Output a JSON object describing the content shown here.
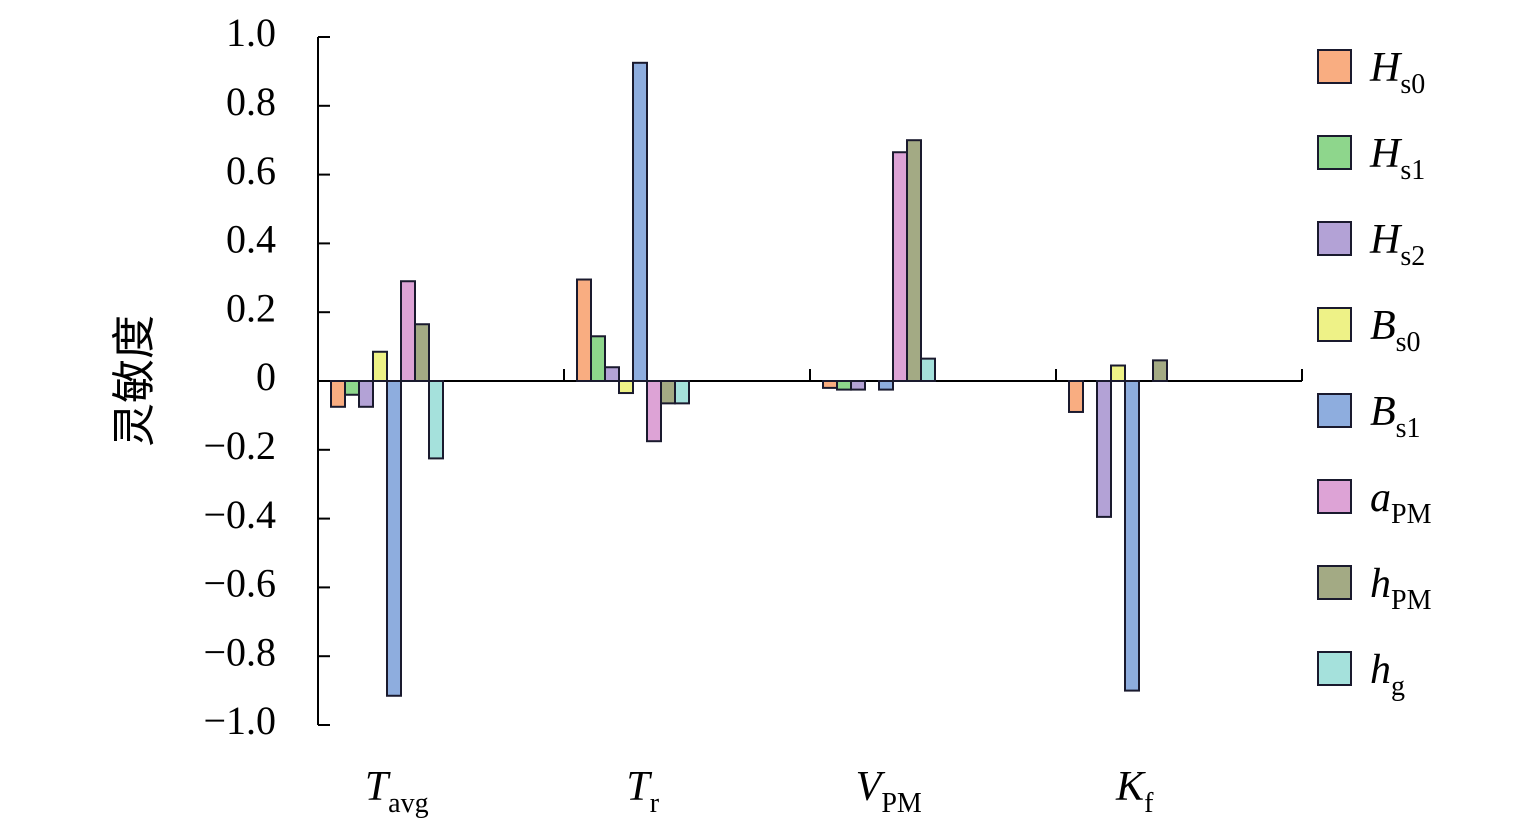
{
  "chart_data": {
    "type": "bar",
    "ylabel": "灵敏度",
    "xlabel": "",
    "ylim": [
      -1.0,
      1.0
    ],
    "yticks": [
      -1.0,
      -0.8,
      -0.6,
      -0.4,
      -0.2,
      0,
      0.2,
      0.4,
      0.6,
      0.8,
      1.0
    ],
    "ytick_labels": [
      "−1.0",
      "−0.8",
      "−0.6",
      "−0.4",
      "−0.2",
      "0",
      "0.2",
      "0.4",
      "0.6",
      "0.8",
      "1.0"
    ],
    "categories": [
      {
        "base": "T",
        "sub": "avg"
      },
      {
        "base": "T",
        "sub": "r"
      },
      {
        "base": "V",
        "sub": "PM"
      },
      {
        "base": "K",
        "sub": "f"
      }
    ],
    "legend_position": "right",
    "series": [
      {
        "name": "H",
        "sub": "s0",
        "color": "#f9ad81",
        "values": [
          -0.075,
          0.295,
          -0.02,
          -0.09
        ]
      },
      {
        "name": "H",
        "sub": "s1",
        "color": "#8ed68c",
        "values": [
          -0.04,
          0.13,
          -0.025,
          0.0
        ]
      },
      {
        "name": "H",
        "sub": "s2",
        "color": "#b3a2d6",
        "values": [
          -0.075,
          0.04,
          -0.025,
          -0.395
        ]
      },
      {
        "name": "B",
        "sub": "s0",
        "color": "#eef287",
        "values": [
          0.085,
          -0.035,
          0.0,
          0.045
        ]
      },
      {
        "name": "B",
        "sub": "s1",
        "color": "#8eadde",
        "values": [
          -0.915,
          0.925,
          -0.025,
          -0.9
        ]
      },
      {
        "name": "a",
        "sub": "PM",
        "color": "#dda3d6",
        "values": [
          0.29,
          -0.175,
          0.665,
          0.0
        ]
      },
      {
        "name": "h",
        "sub": "PM",
        "color": "#a3aa84",
        "values": [
          0.165,
          -0.065,
          0.7,
          0.06
        ]
      },
      {
        "name": "h",
        "sub": "g",
        "color": "#a5e1dc",
        "values": [
          -0.225,
          -0.065,
          0.065,
          0.0
        ]
      }
    ]
  }
}
